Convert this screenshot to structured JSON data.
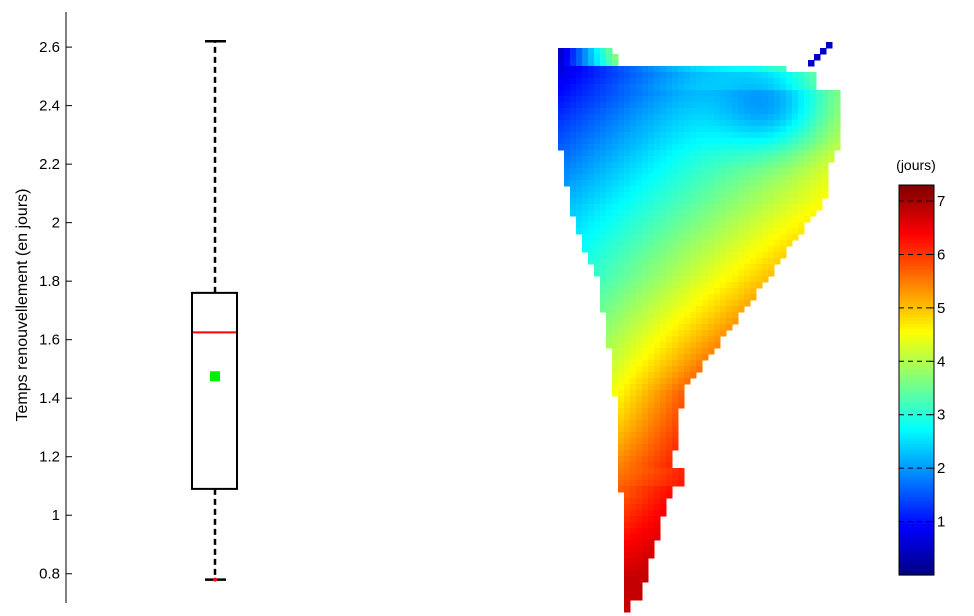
{
  "chart_data": [
    {
      "type": "boxplot",
      "ylabel": "Temps renouvellement (en jours)",
      "ylim": [
        0.7,
        2.72
      ],
      "yticks": [
        0.8,
        1,
        1.2,
        1.4,
        1.6,
        1.8,
        2,
        2.2,
        2.4,
        2.6
      ],
      "ytick_labels": [
        "0.8",
        "1",
        "1.2",
        "1.4",
        "1.6",
        "1.8",
        "2",
        "2.2",
        "2.4",
        "2.6"
      ],
      "box": {
        "whisker_low": 0.78,
        "q1": 1.09,
        "median": 1.625,
        "mean": 1.475,
        "q3": 1.76,
        "whisker_high": 2.62
      },
      "colors": {
        "median": "#ff0000",
        "mean": "#00ee00",
        "box": "#000000"
      }
    },
    {
      "type": "heatmap",
      "colormap": "jet",
      "colorbar_label": "(jours)",
      "colorbar_range": [
        0,
        7.3
      ],
      "colorbar_ticks": [
        1,
        2,
        3,
        4,
        5,
        6,
        7
      ],
      "colorbar_tick_labels": [
        "1",
        "2",
        "3",
        "4",
        "5",
        "6",
        "7"
      ],
      "value_range": [
        0.3,
        6.8
      ]
    }
  ]
}
